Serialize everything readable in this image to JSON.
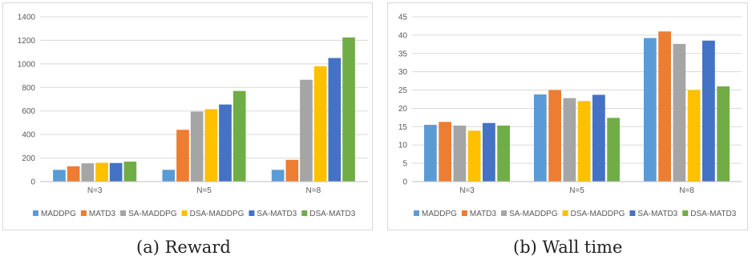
{
  "captions": [
    "(a) Reward",
    "(b) Wall time"
  ],
  "colors": {
    "MADDPG": "#5b9bd5",
    "MATD3": "#ed7d31",
    "SA-MADDPG": "#a5a5a5",
    "DSA-MADDPG": "#ffc000",
    "SA-MATD3": "#4472c4",
    "DSA-MATD3": "#70ad47"
  },
  "chart_data": [
    {
      "type": "bar",
      "title": "",
      "xlabel": "",
      "ylabel": "",
      "categories": [
        "N=3",
        "N=5",
        "N=8"
      ],
      "ylim": [
        0,
        1400
      ],
      "yticks": [
        0,
        200,
        400,
        600,
        800,
        1000,
        1200,
        1400
      ],
      "grid": true,
      "legend_position": "bottom",
      "series": [
        {
          "name": "MADDPG",
          "values": [
            100,
            100,
            100
          ]
        },
        {
          "name": "MATD3",
          "values": [
            130,
            440,
            185
          ]
        },
        {
          "name": "SA-MADDPG",
          "values": [
            155,
            595,
            865
          ]
        },
        {
          "name": "DSA-MADDPG",
          "values": [
            160,
            615,
            980
          ]
        },
        {
          "name": "SA-MATD3",
          "values": [
            158,
            655,
            1050
          ]
        },
        {
          "name": "DSA-MATD3",
          "values": [
            170,
            770,
            1225
          ]
        }
      ]
    },
    {
      "type": "bar",
      "title": "",
      "xlabel": "",
      "ylabel": "",
      "categories": [
        "N=3",
        "N=5",
        "N=8"
      ],
      "ylim": [
        0,
        45
      ],
      "yticks": [
        0,
        5,
        10,
        15,
        20,
        25,
        30,
        35,
        40,
        45
      ],
      "grid": true,
      "legend_position": "bottom",
      "series": [
        {
          "name": "MADDPG",
          "values": [
            15.5,
            23.8,
            39.2
          ]
        },
        {
          "name": "MATD3",
          "values": [
            16.3,
            25.0,
            41.0
          ]
        },
        {
          "name": "SA-MADDPG",
          "values": [
            15.3,
            22.8,
            37.6
          ]
        },
        {
          "name": "DSA-MADDPG",
          "values": [
            13.9,
            22.0,
            25.0
          ]
        },
        {
          "name": "SA-MATD3",
          "values": [
            16.0,
            23.7,
            38.5
          ]
        },
        {
          "name": "DSA-MATD3",
          "values": [
            15.3,
            17.4,
            26.0
          ]
        }
      ]
    }
  ]
}
